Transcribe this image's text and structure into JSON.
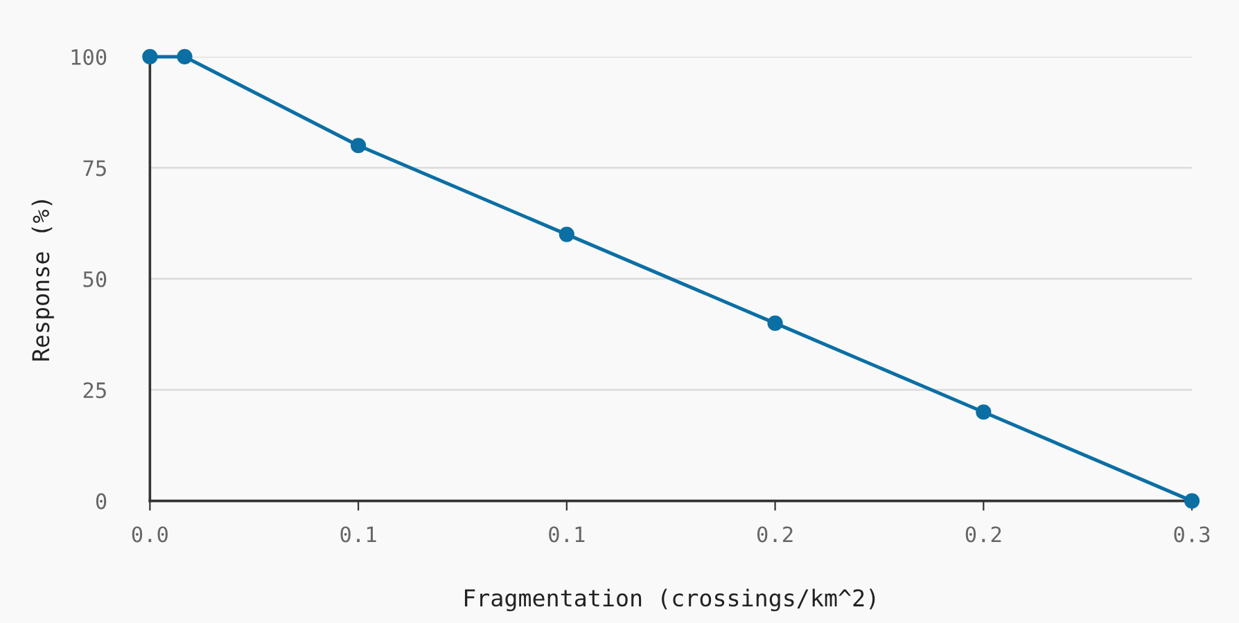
{
  "chart_data": {
    "type": "line",
    "xlabel": "Fragmentation (crossings/km^2)",
    "ylabel": "Response (%)",
    "x": [
      0,
      0.01,
      0.06,
      0.12,
      0.18,
      0.24,
      0.3
    ],
    "series": [
      {
        "color": "#0b6fa4",
        "values": [
          100,
          100,
          80,
          60,
          40,
          20,
          0
        ]
      }
    ],
    "xlim": [
      0,
      0.3
    ],
    "ylim": [
      0,
      100
    ],
    "xticks": [
      {
        "value": 0,
        "label": "0.0"
      },
      {
        "value": 0.06,
        "label": "0.1"
      },
      {
        "value": 0.12,
        "label": "0.1"
      },
      {
        "value": 0.18,
        "label": "0.2"
      },
      {
        "value": 0.24,
        "label": "0.2"
      },
      {
        "value": 0.3,
        "label": "0.3"
      }
    ],
    "yticks": [
      0,
      25,
      50,
      75,
      100
    ],
    "grid": "y",
    "marker": "circle",
    "line_style": "solid"
  }
}
